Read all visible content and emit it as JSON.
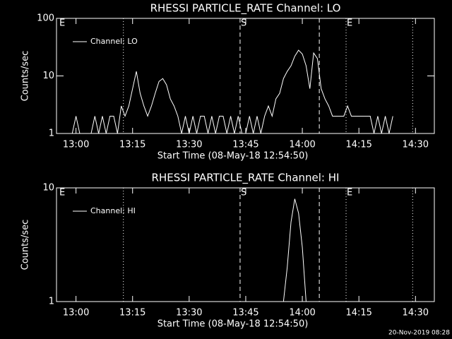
{
  "chart_data": [
    {
      "type": "line",
      "title": "RHESSI PARTICLE_RATE Channel: LO",
      "xlabel": "Start Time (08-May-18 12:54:50)",
      "ylabel": "Counts/sec",
      "log_y": true,
      "xlim": [
        774.83,
        875
      ],
      "ylim": [
        1,
        100
      ],
      "yticks": [
        1,
        10,
        100
      ],
      "xticks": [
        {
          "value": 780,
          "label": "13:00"
        },
        {
          "value": 795,
          "label": "13:15"
        },
        {
          "value": 810,
          "label": "13:30"
        },
        {
          "value": 825,
          "label": "13:45"
        },
        {
          "value": 840,
          "label": "14:00"
        },
        {
          "value": 855,
          "label": "14:15"
        },
        {
          "value": 870,
          "label": "14:30"
        }
      ],
      "x": [
        775,
        776,
        777,
        778,
        779,
        780,
        781,
        782,
        783,
        784,
        785,
        786,
        787,
        788,
        789,
        790,
        791,
        792,
        793,
        794,
        795,
        796,
        797,
        798,
        799,
        800,
        801,
        802,
        803,
        804,
        805,
        806,
        807,
        808,
        809,
        810,
        811,
        812,
        813,
        814,
        815,
        816,
        817,
        818,
        819,
        820,
        821,
        822,
        823,
        824,
        825,
        826,
        827,
        828,
        829,
        830,
        831,
        832,
        833,
        834,
        835,
        836,
        837,
        838,
        839,
        840,
        841,
        842,
        843,
        844,
        845,
        846,
        847,
        848,
        849,
        850,
        851,
        852,
        853,
        854,
        855,
        856,
        857,
        858,
        859,
        860,
        861,
        862,
        863,
        864
      ],
      "series": [
        {
          "name": "Channel: LO",
          "color": "#ffffff",
          "values": [
            1,
            1,
            1,
            1,
            1,
            2,
            1,
            1,
            1,
            1,
            2,
            1,
            2,
            1,
            2,
            2,
            1,
            3,
            2,
            3,
            6,
            12,
            5,
            3,
            2,
            3,
            5,
            8,
            9,
            7,
            4,
            3,
            2,
            1,
            2,
            1,
            2,
            1,
            2,
            2,
            1,
            2,
            1,
            2,
            2,
            1,
            2,
            1,
            2,
            1,
            1,
            2,
            1,
            2,
            1,
            2,
            3,
            2,
            4,
            5,
            9,
            12,
            15,
            22,
            28,
            24,
            15,
            6,
            25,
            20,
            6,
            4,
            3,
            2,
            2,
            2,
            2,
            3,
            2,
            2,
            2,
            2,
            2,
            2,
            1,
            2,
            1,
            2,
            1,
            2
          ]
        }
      ],
      "vlines": [
        {
          "x": 792.56,
          "style": "dotted"
        },
        {
          "x": 823.5,
          "style": "dashed"
        },
        {
          "x": 844.5,
          "style": "dashed"
        },
        {
          "x": 851.6,
          "style": "dotted"
        },
        {
          "x": 869.25,
          "style": "dotted"
        }
      ],
      "annotations": [
        {
          "text": "E",
          "x": 775.4
        },
        {
          "text": "S",
          "x": 823.5
        },
        {
          "text": "E",
          "x": 851.6
        }
      ]
    },
    {
      "type": "line",
      "title": "RHESSI PARTICLE_RATE Channel: HI",
      "xlabel": "Start Time (08-May-18 12:54:50)",
      "ylabel": "Counts/sec",
      "log_y": true,
      "xlim": [
        774.83,
        875
      ],
      "ylim": [
        1,
        10
      ],
      "yticks": [
        1,
        10
      ],
      "xticks": [
        {
          "value": 780,
          "label": "13:00"
        },
        {
          "value": 795,
          "label": "13:15"
        },
        {
          "value": 810,
          "label": "13:30"
        },
        {
          "value": 825,
          "label": "13:45"
        },
        {
          "value": 840,
          "label": "14:00"
        },
        {
          "value": 855,
          "label": "14:15"
        },
        {
          "value": 870,
          "label": "14:30"
        }
      ],
      "x": [
        775,
        835,
        836,
        837,
        838,
        839,
        840,
        841
      ],
      "series": [
        {
          "name": "Channel: HI",
          "color": "#ffffff",
          "values": [
            1,
            1,
            2,
            5,
            8,
            6,
            3,
            1
          ]
        }
      ],
      "vlines": [
        {
          "x": 792.56,
          "style": "dotted"
        },
        {
          "x": 823.5,
          "style": "dashed"
        },
        {
          "x": 844.5,
          "style": "dashed"
        },
        {
          "x": 851.6,
          "style": "dotted"
        },
        {
          "x": 869.25,
          "style": "dotted"
        }
      ],
      "annotations": [
        {
          "text": "E",
          "x": 775.4
        },
        {
          "text": "S",
          "x": 823.5
        },
        {
          "text": "E",
          "x": 851.6
        }
      ]
    }
  ],
  "timestamp": "20-Nov-2019 08:28"
}
